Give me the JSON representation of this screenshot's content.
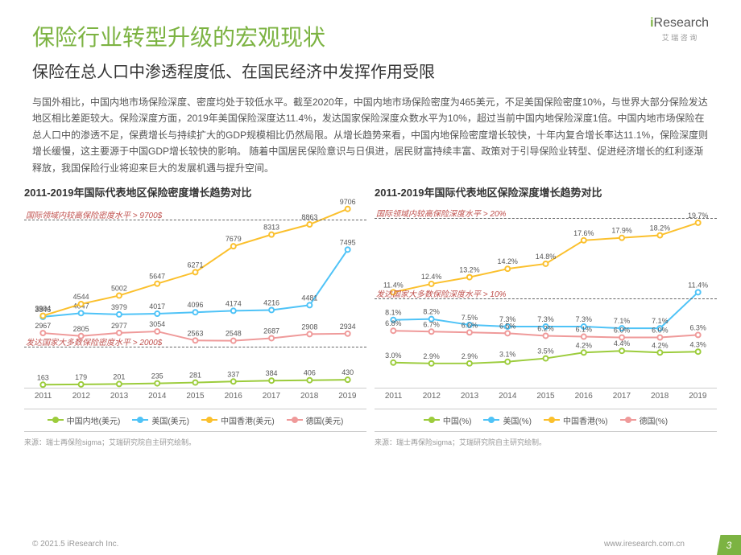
{
  "header": {
    "title": "保险行业转型升级的宏观现状",
    "subtitle": "保险在总人口中渗透程度低、在国民经济中发挥作用受限",
    "logo_main_i": "i",
    "logo_main_rest": "Research",
    "logo_sub": "艾 瑞 咨 询"
  },
  "body": "与国外相比，中国内地市场保险深度、密度均处于较低水平。截至2020年，中国内地市场保险密度为465美元，不足美国保险密度10%，与世界大部分保险发达地区相比差距较大。保险深度方面，2019年美国保险深度达11.4%，发达国家保险深度众数水平为10%，超过当前中国内地保险深度1倍。中国内地市场保险在总人口中的渗透不足，保费增长与持续扩大的GDP规模相比仍然局限。从增长趋势来看，中国内地保险密度增长较快，十年内复合增长率达11.1%，保险深度则增长缓慢，这主要源于中国GDP增长较快的影响。  随着中国居民保险意识与日俱进，居民财富持续丰富、政策对于引导保险业转型、促进经济增长的红利逐渐释放，我国保险行业将迎来巨大的发展机遇与提升空间。",
  "chart1": {
    "title": "2011-2019年国际代表地区保险密度增长趋势对比",
    "ref1_label": "国际领域内较高保险密度水平",
    "ref1_val": "> 9700$",
    "ref1_y": 20,
    "ref2_label": "发达国家大多数保险密度水平",
    "ref2_val": "> 2000$",
    "ref2_y": 178,
    "ymax": 10000,
    "years": [
      "2011",
      "2012",
      "2013",
      "2014",
      "2015",
      "2016",
      "2017",
      "2018",
      "2019"
    ],
    "series": [
      {
        "name": "中国内地(美元)",
        "color": "#9ccc3c",
        "vals": [
          163,
          179,
          201,
          235,
          281,
          337,
          384,
          406,
          430
        ]
      },
      {
        "name": "美国(美元)",
        "color": "#4fc3f7",
        "vals": [
          3846,
          4047,
          3979,
          4017,
          4096,
          4174,
          4216,
          4481,
          7495
        ]
      },
      {
        "name": "中国香港(美元)",
        "color": "#fbc02d",
        "vals": [
          3904,
          4544,
          5002,
          5647,
          6271,
          7679,
          8313,
          8863,
          9706
        ]
      },
      {
        "name": "德国(美元)",
        "color": "#ef9a9a",
        "vals": [
          2967,
          2805,
          2977,
          3054,
          2563,
          2548,
          2687,
          2908,
          2934
        ]
      }
    ],
    "source": "来源：瑞士再保险sigma；艾瑞研究院自主研究绘制。"
  },
  "chart2": {
    "title": "2011-2019年国际代表地区保险深度增长趋势对比",
    "ref1_label": "国际领域内较高保险深度水平",
    "ref1_val": "> 20%",
    "ref1_y": 18,
    "ref2_label": "发达国家大多数保险深度水平",
    "ref2_val": "> 10%",
    "ref2_y": 118,
    "ymax": 22,
    "years": [
      "2011",
      "2012",
      "2013",
      "2014",
      "2015",
      "2016",
      "2017",
      "2018",
      "2019"
    ],
    "series": [
      {
        "name": "中国(%)",
        "color": "#9ccc3c",
        "vals": [
          3.0,
          2.9,
          2.9,
          3.1,
          3.5,
          4.2,
          4.4,
          4.2,
          4.3
        ],
        "fmt": "pct"
      },
      {
        "name": "美国(%)",
        "color": "#4fc3f7",
        "vals": [
          8.1,
          8.2,
          7.5,
          7.3,
          7.3,
          7.3,
          7.1,
          7.1,
          11.4
        ],
        "fmt": "pct"
      },
      {
        "name": "中国香港(%)",
        "color": "#fbc02d",
        "vals": [
          11.4,
          12.4,
          13.2,
          14.2,
          14.8,
          17.6,
          17.9,
          18.2,
          19.7
        ],
        "fmt": "pct"
      },
      {
        "name": "德国(%)",
        "color": "#ef9a9a",
        "vals": [
          6.8,
          6.7,
          6.6,
          6.5,
          6.2,
          6.1,
          6.0,
          6.0,
          6.3
        ],
        "fmt": "pct"
      }
    ],
    "source": "来源：瑞士再保险sigma；艾瑞研究院自主研究绘制。"
  },
  "footer": {
    "copyright": "© 2021.5 iResearch Inc.",
    "url": "www.iresearch.com.cn",
    "page": "3"
  }
}
